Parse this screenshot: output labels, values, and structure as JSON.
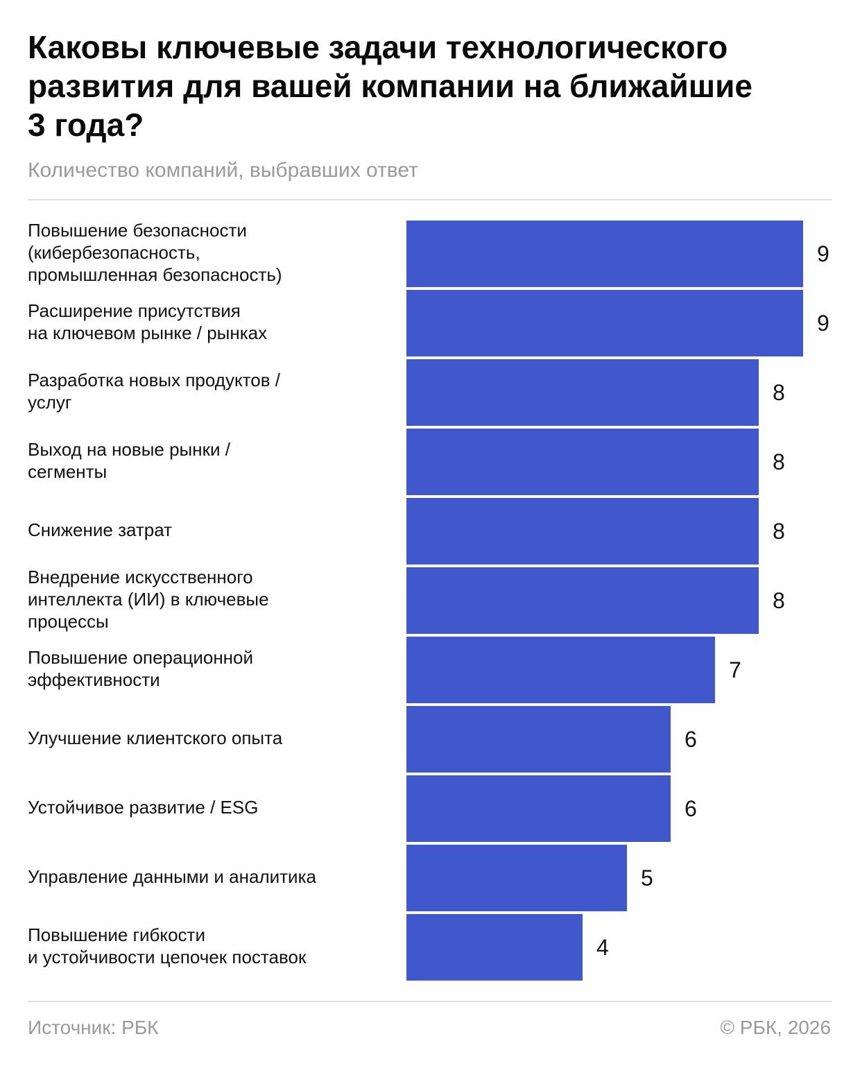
{
  "header": {
    "title": "Каковы ключевые задачи технологического\nразвития для вашей компании на ближайшие\n3 года?",
    "subtitle": "Количество компаний, выбравших ответ"
  },
  "footer": {
    "source": "Источник: РБК",
    "copyright": "© РБК, 2026"
  },
  "colors": {
    "bar": "#4157cc",
    "text": "#111111",
    "muted": "#9a9a9a",
    "divider": "#e1e1e1"
  },
  "chart_data": {
    "type": "bar",
    "orientation": "horizontal",
    "title": "Каковы ключевые задачи технологического развития для вашей компании на ближайшие 3 года?",
    "subtitle": "Количество компаний, выбравших ответ",
    "categories": [
      "Повышение безопасности\n(кибербезопасность,\nпромышленная безопасность)",
      "Расширение присутствия\nна ключевом рынке / рынках",
      "Разработка новых продуктов /\nуслуг",
      "Выход на новые рынки /\nсегменты",
      "Снижение затрат",
      "Внедрение искусственного\nинтеллекта (ИИ) в ключевые\nпроцессы",
      "Повышение операционной\nэффективности",
      "Улучшение клиентского опыта",
      "Устойчивое развитие / ESG",
      "Управление данными и аналитика",
      "Повышение гибкости\nи устойчивости цепочек поставок"
    ],
    "values": [
      9,
      9,
      8,
      8,
      8,
      8,
      7,
      6,
      6,
      5,
      4
    ],
    "xlim": [
      0,
      9
    ],
    "data_labels": true,
    "grid": false,
    "legend": "none"
  }
}
